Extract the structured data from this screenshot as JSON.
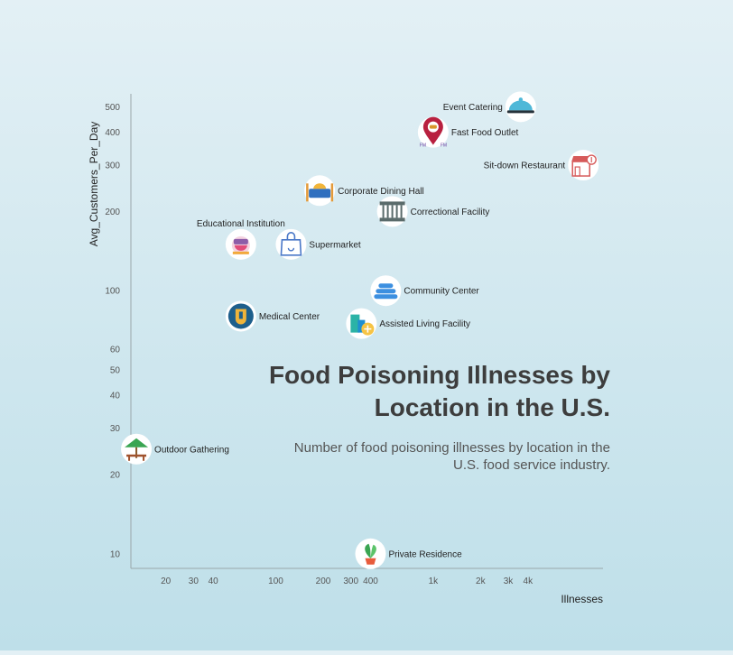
{
  "chart_data": {
    "type": "scatter",
    "title": "Food Poisoning Illnesses by Location in the U.S.",
    "subtitle": "Number of food poisoning illnesses by location in the U.S. food service industry.",
    "xlabel": "Illnesses",
    "ylabel": "Avg_Customers_Per_Day",
    "xscale": "log",
    "yscale": "log",
    "xlim": [
      12,
      12000
    ],
    "ylim": [
      8.8,
      560
    ],
    "xticks": [
      {
        "value": 20,
        "label": "20"
      },
      {
        "value": 30,
        "label": "30"
      },
      {
        "value": 40,
        "label": "40"
      },
      {
        "value": 100,
        "label": "100"
      },
      {
        "value": 200,
        "label": "200"
      },
      {
        "value": 300,
        "label": "300"
      },
      {
        "value": 400,
        "label": "400"
      },
      {
        "value": 1000,
        "label": "1k"
      },
      {
        "value": 2000,
        "label": "2k"
      },
      {
        "value": 3000,
        "label": "3k"
      },
      {
        "value": 4000,
        "label": "4k"
      }
    ],
    "yticks": [
      {
        "value": 10,
        "label": "10"
      },
      {
        "value": 20,
        "label": "20"
      },
      {
        "value": 30,
        "label": "30"
      },
      {
        "value": 40,
        "label": "40"
      },
      {
        "value": 50,
        "label": "50"
      },
      {
        "value": 60,
        "label": "60"
      },
      {
        "value": 100,
        "label": "100"
      },
      {
        "value": 200,
        "label": "200"
      },
      {
        "value": 300,
        "label": "300"
      },
      {
        "value": 400,
        "label": "400"
      },
      {
        "value": 500,
        "label": "500"
      }
    ],
    "points": [
      {
        "label": "Event Catering",
        "x": 3600,
        "y": 500,
        "icon": "catering-cloche-icon",
        "color": "#4fb8d8"
      },
      {
        "label": "Fast Food Outlet",
        "x": 1000,
        "y": 400,
        "icon": "fast-food-pin-icon",
        "color": "#b8203f"
      },
      {
        "label": "Sit-down Restaurant",
        "x": 9000,
        "y": 300,
        "icon": "restaurant-storefront-icon",
        "color": "#d65a5a"
      },
      {
        "label": "Corporate Dining Hall",
        "x": 190,
        "y": 240,
        "icon": "dining-table-icon",
        "color": "#2f6fbf"
      },
      {
        "label": "Correctional Facility",
        "x": 550,
        "y": 200,
        "icon": "prison-bars-icon",
        "color": "#5a6b6b"
      },
      {
        "label": "Educational Institution",
        "x": 60,
        "y": 150,
        "icon": "school-lunch-icon",
        "color": "#e14b7a"
      },
      {
        "label": "Supermarket",
        "x": 125,
        "y": 150,
        "icon": "shopping-bag-icon",
        "color": "#4a78c8"
      },
      {
        "label": "Community Center",
        "x": 500,
        "y": 100,
        "icon": "stacked-dishes-icon",
        "color": "#3c8fe0"
      },
      {
        "label": "Medical Center",
        "x": 60,
        "y": 80,
        "icon": "medical-shield-icon",
        "color": "#1e5f8c"
      },
      {
        "label": "Assisted Living Facility",
        "x": 350,
        "y": 75,
        "icon": "care-building-icon",
        "color": "#2bb3a6"
      },
      {
        "label": "Outdoor Gathering",
        "x": 13,
        "y": 25,
        "icon": "picnic-umbrella-icon",
        "color": "#3aa552"
      },
      {
        "label": "Private Residence",
        "x": 400,
        "y": 10,
        "icon": "home-plant-icon",
        "color": "#e85c3c"
      }
    ]
  }
}
